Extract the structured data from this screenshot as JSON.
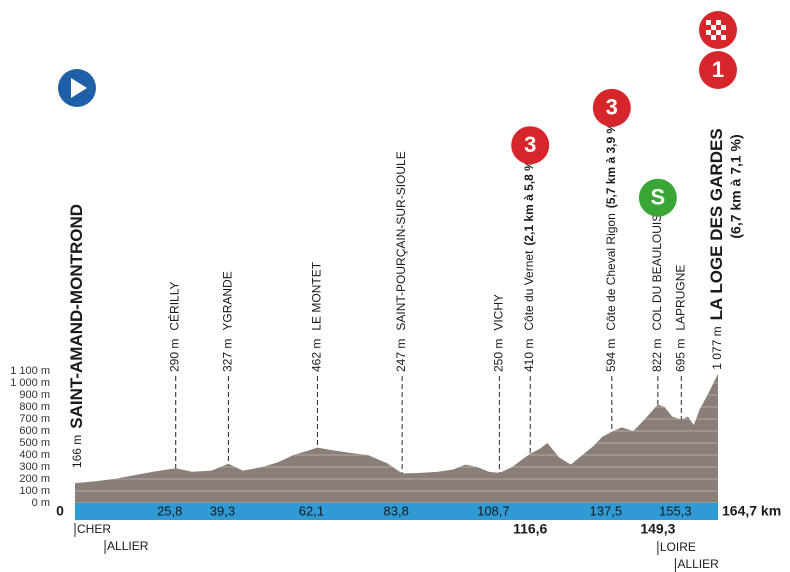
{
  "chart_data": {
    "type": "area",
    "color": "#8a7f78",
    "band_color": "#2f9ad3",
    "grid": true,
    "xlim": [
      0,
      164.7
    ],
    "ylim": [
      0,
      1100
    ],
    "yticks": [
      {
        "value": 0,
        "label": "0 m"
      },
      {
        "value": 100,
        "label": "100 m"
      },
      {
        "value": 200,
        "label": "200 m"
      },
      {
        "value": 300,
        "label": "300 m"
      },
      {
        "value": 400,
        "label": "400 m"
      },
      {
        "value": 500,
        "label": "500 m"
      },
      {
        "value": 600,
        "label": "600 m"
      },
      {
        "value": 700,
        "label": "700 m"
      },
      {
        "value": 800,
        "label": "800 m"
      },
      {
        "value": 900,
        "label": "900 m"
      },
      {
        "value": 1000,
        "label": "1 000 m"
      },
      {
        "value": 1100,
        "label": "1 100 m"
      }
    ],
    "xticks": [
      0,
      {
        "value": 25.8,
        "label": "25,8"
      },
      {
        "value": 39.3,
        "label": "39,3"
      },
      {
        "value": 62.1,
        "label": "62,1"
      },
      {
        "value": 83.8,
        "label": "83,8"
      },
      {
        "value": 108.7,
        "label": "108,7"
      },
      {
        "value": 116.6,
        "label": "116,6"
      },
      {
        "value": 137.5,
        "label": "137,5"
      },
      {
        "value": 149.3,
        "label": "149,3"
      },
      {
        "value": 155.3,
        "label": "155,3"
      },
      {
        "value": 164.7,
        "label": "164,7 km"
      }
    ],
    "x": [
      0,
      5,
      10,
      15,
      20,
      25.8,
      30,
      35,
      39.3,
      43,
      48,
      52,
      56,
      60,
      62.1,
      66,
      70,
      75,
      80,
      83.8,
      88,
      93,
      97,
      100,
      103,
      106,
      108.7,
      112,
      114,
      116.6,
      119,
      121,
      124,
      127,
      130,
      133,
      135,
      137.5,
      140,
      143,
      146,
      149.3,
      151,
      153,
      155.3,
      157,
      158.5,
      160,
      162,
      164.7
    ],
    "values": [
      166,
      180,
      200,
      230,
      260,
      290,
      260,
      270,
      327,
      270,
      300,
      340,
      400,
      440,
      462,
      440,
      420,
      400,
      330,
      247,
      250,
      260,
      280,
      320,
      300,
      260,
      250,
      300,
      350,
      410,
      450,
      500,
      380,
      320,
      400,
      480,
      550,
      594,
      630,
      600,
      700,
      822,
      800,
      720,
      695,
      720,
      650,
      780,
      900,
      1077
    ],
    "start": {
      "km": 0,
      "altitude": {
        "value": 166,
        "label": "166 m"
      },
      "name": "SAINT-AMAND-MONTROND"
    },
    "finish": {
      "km": 164.7,
      "altitude": {
        "value": 1077,
        "label": "1 077 m"
      },
      "name": "LA LOGE DES GARDES",
      "detail": "(6,7 km à 7,1 %)",
      "category": "1"
    },
    "places": [
      {
        "km": 25.8,
        "altitude": {
          "value": 290,
          "label": "290 m"
        },
        "name": "CÉRILLY"
      },
      {
        "km": 39.3,
        "altitude": {
          "value": 327,
          "label": "327 m"
        },
        "name": "YGRANDE"
      },
      {
        "km": 62.1,
        "altitude": {
          "value": 462,
          "label": "462 m"
        },
        "name": "LE MONTET"
      },
      {
        "km": 83.8,
        "altitude": {
          "value": 247,
          "label": "247 m"
        },
        "name": "SAINT-POURÇAIN-SUR-SIOULE"
      },
      {
        "km": 108.7,
        "altitude": {
          "value": 250,
          "label": "250 m"
        },
        "name": "VICHY"
      },
      {
        "km": 116.6,
        "altitude": {
          "value": 410,
          "label": "410 m"
        },
        "name": "Côte du Vernet",
        "detail": "(2,1 km à 5,8 %)",
        "category": "3"
      },
      {
        "km": 137.5,
        "altitude": {
          "value": 594,
          "label": "594 m"
        },
        "name": "Côte de Cheval Rigon",
        "detail": "(5,7 km à 3,9 %)",
        "category": "3"
      },
      {
        "km": 149.3,
        "altitude": {
          "value": 822,
          "label": "822 m"
        },
        "name": "COL DU BEAULOUIS",
        "sprint": "S"
      },
      {
        "km": 155.3,
        "altitude": {
          "value": 695,
          "label": "695 m"
        },
        "name": "LAPRUGNE"
      }
    ],
    "departments": [
      {
        "km": 0,
        "name": "CHER"
      },
      {
        "km": 7.7,
        "name": "ALLIER"
      },
      {
        "km": 149.3,
        "name": "LOIRE"
      },
      {
        "km": 153.8,
        "name": "ALLIER"
      }
    ]
  }
}
